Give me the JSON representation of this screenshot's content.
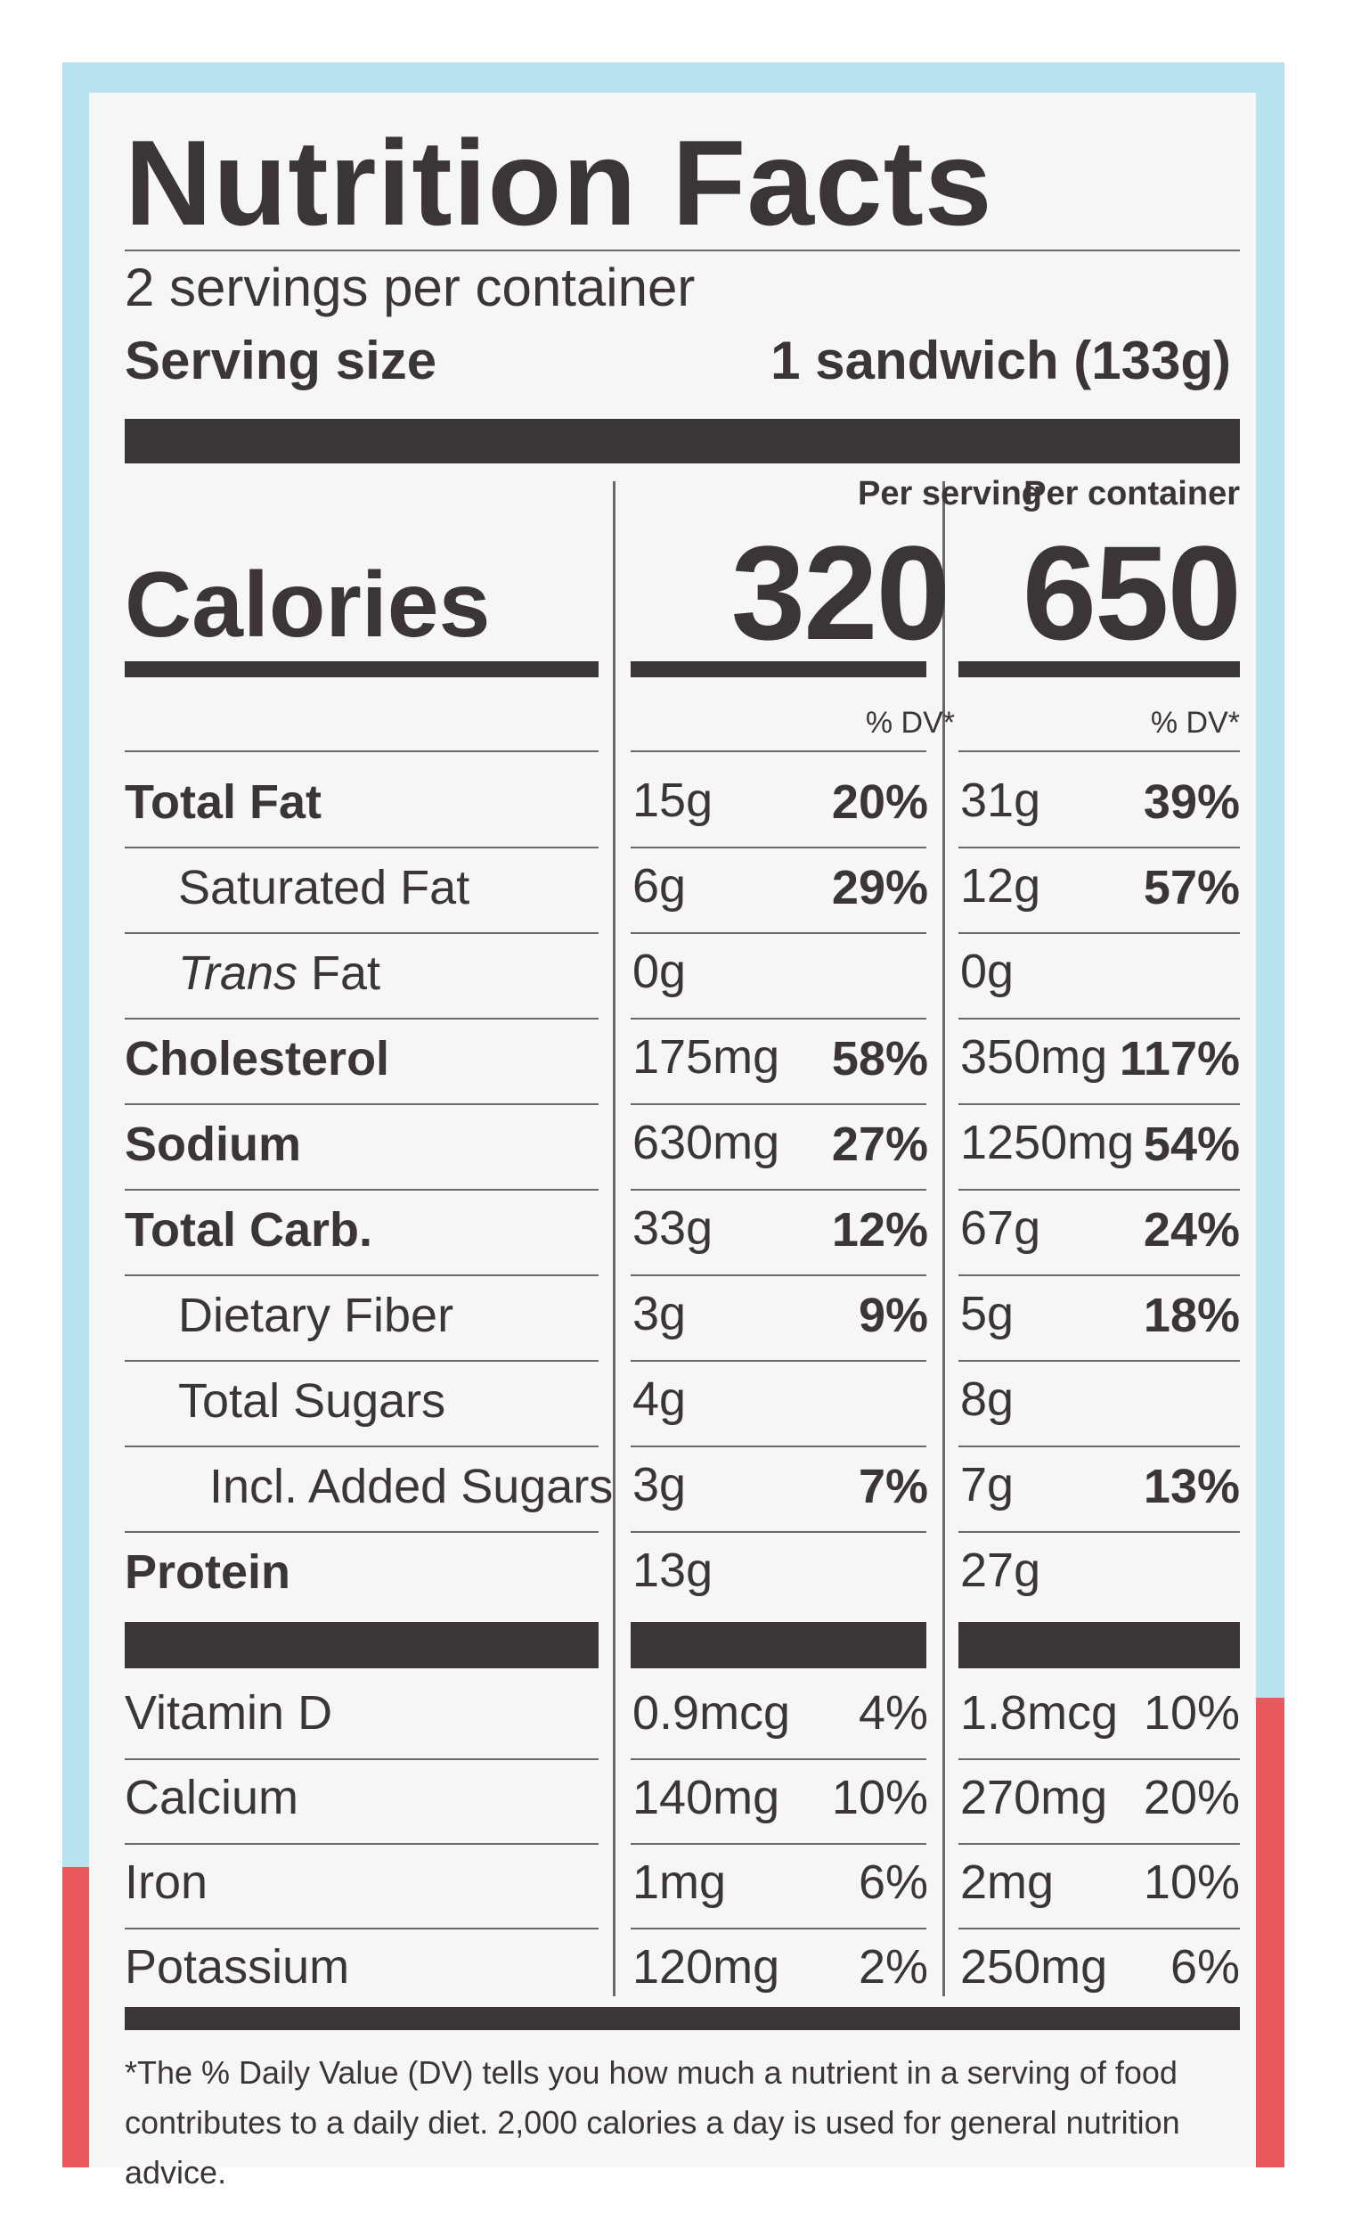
{
  "title": "Nutrition Facts",
  "servings_per_container": "2 servings per container",
  "serving_size_label": "Serving size",
  "serving_size_value": "1 sandwich (133g)",
  "column_headers": {
    "per_serving": "Per serving",
    "per_container": "Per container"
  },
  "calories": {
    "label": "Calories",
    "per_serving": "320",
    "per_container": "650"
  },
  "dv_header": "% DV*",
  "nutrients": [
    {
      "name": "Total Fat",
      "serving_amount": "15g",
      "serving_dv": "20%",
      "container_amount": "31g",
      "container_dv": "39%"
    },
    {
      "name": "Saturated Fat",
      "serving_amount": "6g",
      "serving_dv": "29%",
      "container_amount": "12g",
      "container_dv": "57%"
    },
    {
      "name_italic": "Trans",
      "name_rest": " Fat",
      "serving_amount": "0g",
      "serving_dv": "",
      "container_amount": "0g",
      "container_dv": ""
    },
    {
      "name": "Cholesterol",
      "serving_amount": "175mg",
      "serving_dv": "58%",
      "container_amount": "350mg",
      "container_dv": "117%"
    },
    {
      "name": "Sodium",
      "serving_amount": "630mg",
      "serving_dv": "27%",
      "container_amount": "1250mg",
      "container_dv": "54%"
    },
    {
      "name": "Total Carb.",
      "serving_amount": "33g",
      "serving_dv": "12%",
      "container_amount": "67g",
      "container_dv": "24%"
    },
    {
      "name": "Dietary Fiber",
      "serving_amount": "3g",
      "serving_dv": "9%",
      "container_amount": "5g",
      "container_dv": "18%"
    },
    {
      "name": "Total Sugars",
      "serving_amount": "4g",
      "serving_dv": "",
      "container_amount": "8g",
      "container_dv": ""
    },
    {
      "name": "Incl. Added Sugars",
      "serving_amount": "3g",
      "serving_dv": "7%",
      "container_amount": "7g",
      "container_dv": "13%"
    },
    {
      "name": "Protein",
      "serving_amount": "13g",
      "serving_dv": "",
      "container_amount": "27g",
      "container_dv": ""
    }
  ],
  "vitamins": [
    {
      "name": "Vitamin D",
      "serving_amount": "0.9mcg",
      "serving_dv": "4%",
      "container_amount": "1.8mcg",
      "container_dv": "10%"
    },
    {
      "name": "Calcium",
      "serving_amount": "140mg",
      "serving_dv": "10%",
      "container_amount": "270mg",
      "container_dv": "20%"
    },
    {
      "name": "Iron",
      "serving_amount": "1mg",
      "serving_dv": "6%",
      "container_amount": "2mg",
      "container_dv": "10%"
    },
    {
      "name": "Potassium",
      "serving_amount": "120mg",
      "serving_dv": "2%",
      "container_amount": "250mg",
      "container_dv": "6%"
    }
  ],
  "footnote_line1": "*The % Daily Value (DV) tells you how much a nutrient in a serving of food",
  "footnote_line2": "contributes to a daily diet. 2,000 calories a day is used for general nutrition advice.",
  "colors": {
    "ink": "#3b3635",
    "panel": "#f7f6f6",
    "package_blue": "#b7e3ef",
    "package_red": "#e9585a"
  }
}
